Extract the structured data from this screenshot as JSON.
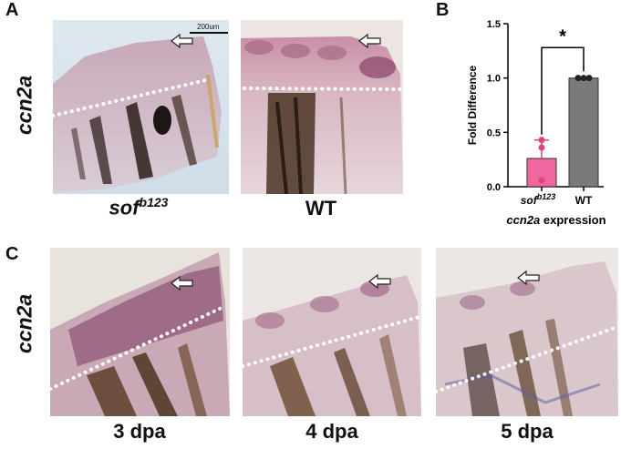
{
  "panels": {
    "a": {
      "letter": "A",
      "gene_label": "ccn2a",
      "scale_bar": "200um",
      "images": [
        {
          "genotype_main": "sof",
          "genotype_sup": "b123"
        },
        {
          "genotype_main": "WT"
        }
      ]
    },
    "b": {
      "letter": "B",
      "significance": "*",
      "xlabel_italic": "ccn2a",
      "xlabel_rest": " expression"
    },
    "c": {
      "letter": "C",
      "gene_label": "ccn2a",
      "timepoints": [
        "3 dpa",
        "4 dpa",
        "5 dpa"
      ]
    }
  },
  "chart_data": {
    "type": "bar",
    "title": "",
    "ylabel": "Fold Difference",
    "xlabel": "ccn2a expression",
    "ylim": [
      0,
      1.5
    ],
    "yticks": [
      "0.0",
      "0.5",
      "1.0",
      "1.5"
    ],
    "categories": [
      {
        "main": "sof",
        "sup": "b123"
      },
      {
        "main": "WT",
        "sup": ""
      }
    ],
    "values": [
      0.26,
      1.0
    ],
    "error_upper": [
      0.43,
      1.0
    ],
    "points": [
      [
        0.43,
        0.36,
        0.06
      ],
      [
        1.0,
        1.0,
        1.0
      ]
    ],
    "colors": [
      "#f0679f",
      "#7a7a7a"
    ],
    "significance": "*"
  }
}
